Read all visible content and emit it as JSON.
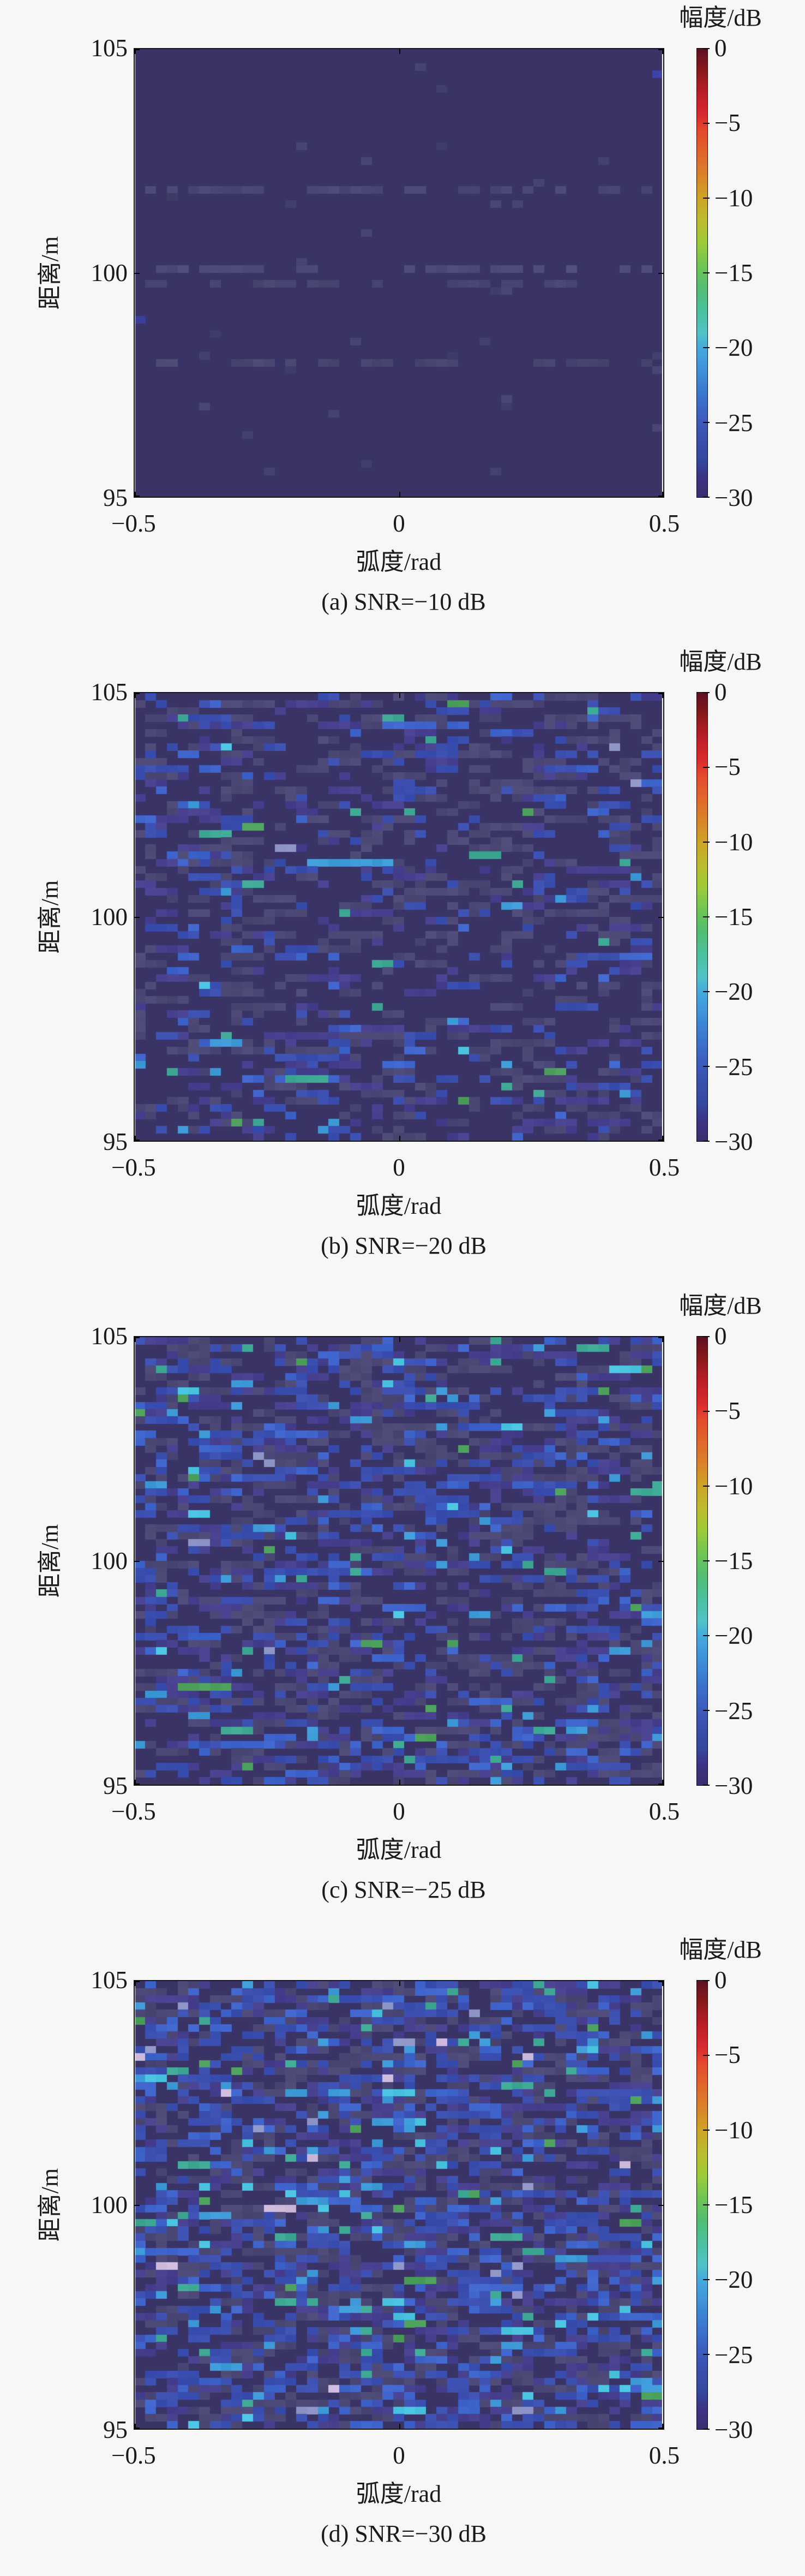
{
  "figure": {
    "background": "#f7f7f7",
    "axes_color": "#151515",
    "cell_grid": [
      49,
      62
    ]
  },
  "colormap_stops": [
    [
      0,
      "#5c0f22"
    ],
    [
      -1.5,
      "#8c191b"
    ],
    [
      -3,
      "#bb1e27"
    ],
    [
      -4.5,
      "#d92b2e"
    ],
    [
      -5.5,
      "#e4492d"
    ],
    [
      -7,
      "#e0662b"
    ],
    [
      -8.5,
      "#db8228"
    ],
    [
      -10,
      "#cda426"
    ],
    [
      -11.5,
      "#bcbb2e"
    ],
    [
      -13,
      "#9ecb37"
    ],
    [
      -14.5,
      "#6fc653"
    ],
    [
      -16,
      "#52bd71"
    ],
    [
      -17.5,
      "#49c19c"
    ],
    [
      -19,
      "#4fc3c7"
    ],
    [
      -20,
      "#45aade"
    ],
    [
      -21.5,
      "#3e91da"
    ],
    [
      -23,
      "#3b78d0"
    ],
    [
      -24.5,
      "#3c60c2"
    ],
    [
      -26,
      "#3950ae"
    ],
    [
      -27.5,
      "#34489e"
    ],
    [
      -28.7,
      "#3c3284"
    ],
    [
      -30,
      "#3a2d6e"
    ]
  ],
  "chart_data": [
    {
      "type": "heatmap",
      "caption": "(a) SNR=−10 dB",
      "snr_db": -10,
      "xlabel": "弧度/rad",
      "ylabel": "距离/m",
      "x_ticks": [
        "−0.5",
        "0",
        "0.5"
      ],
      "y_ticks": [
        "105",
        "100",
        "95"
      ],
      "x_range": [
        -0.5,
        0.5
      ],
      "y_range": [
        95,
        105
      ],
      "colorbar": {
        "label": "幅度/dB",
        "ticks": [
          "0",
          "−5",
          "−10",
          "−15",
          "−20",
          "−25",
          "−30"
        ],
        "range_db": [
          -30,
          0
        ]
      },
      "noise": {
        "seed": 101,
        "mode": "bands",
        "base_color": "#393366",
        "run_extend_prob": 0.5,
        "bands": [
          {
            "row_frac": 0.31,
            "fill_prob": 0.4,
            "color": "#4b4775"
          },
          {
            "row_frac": 0.495,
            "fill_prob": 0.52,
            "color": "#4e4a79"
          },
          {
            "row_frac": 0.52,
            "fill_prob": 0.28,
            "color": "#484472"
          },
          {
            "row_frac": 0.705,
            "fill_prob": 0.42,
            "color": "#4a4672"
          }
        ],
        "scatter": {
          "density": 0.012,
          "color": "#45416e"
        },
        "extras": [
          {
            "col": 0,
            "row": 37,
            "color": "#3b3f9b"
          },
          {
            "col": 48,
            "row": 3,
            "color": "#3d43a8"
          },
          {
            "col": 48,
            "row": 44,
            "color": "#4a4673"
          }
        ]
      }
    },
    {
      "type": "heatmap",
      "caption": "(b) SNR=−20 dB",
      "snr_db": -20,
      "xlabel": "弧度/rad",
      "ylabel": "距离/m",
      "x_ticks": [
        "−0.5",
        "0",
        "0.5"
      ],
      "y_ticks": [
        "105",
        "100",
        "95"
      ],
      "x_range": [
        -0.5,
        0.5
      ],
      "y_range": [
        95,
        105
      ],
      "colorbar": {
        "label": "幅度/dB",
        "ticks": [
          "0",
          "−5",
          "−10",
          "−15",
          "−20",
          "−25",
          "−30"
        ],
        "range_db": [
          -30,
          0
        ]
      },
      "noise": {
        "seed": 202,
        "mode": "random",
        "base_color": "#393366",
        "run_extend_prob": 0.45,
        "palette": [
          {
            "color": "#393366",
            "weight": 0.7,
            "db": -30
          },
          {
            "color": "#4c4876",
            "weight": 0.13,
            "db": -27
          },
          {
            "color": "#46408f",
            "weight": 0.065,
            "db": -26
          },
          {
            "color": "#3a4fb0",
            "weight": 0.075,
            "db": -24
          },
          {
            "color": "#3f64cb",
            "weight": 0.015,
            "db": -23
          },
          {
            "color": "#3e9bd8",
            "weight": 0.005,
            "db": -20
          },
          {
            "color": "#49c3e0",
            "weight": 0.002,
            "db": -19
          },
          {
            "color": "#3fa895",
            "weight": 0.004,
            "db": -18
          },
          {
            "color": "#4da05c",
            "weight": 0.002,
            "db": -16
          },
          {
            "color": "#8e96c8",
            "weight": 0.002,
            "db": -22
          }
        ]
      }
    },
    {
      "type": "heatmap",
      "caption": "(c) SNR=−25 dB",
      "snr_db": -25,
      "xlabel": "弧度/rad",
      "ylabel": "距离/m",
      "x_ticks": [
        "−0.5",
        "0",
        "0.5"
      ],
      "y_ticks": [
        "105",
        "100",
        "95"
      ],
      "x_range": [
        -0.5,
        0.5
      ],
      "y_range": [
        95,
        105
      ],
      "colorbar": {
        "label": "幅度/dB",
        "ticks": [
          "0",
          "−5",
          "−10",
          "−15",
          "−20",
          "−25",
          "−30"
        ],
        "range_db": [
          -30,
          0
        ]
      },
      "noise": {
        "seed": 303,
        "mode": "random",
        "base_color": "#393366",
        "run_extend_prob": 0.5,
        "palette": [
          {
            "color": "#393366",
            "weight": 0.585,
            "db": -30
          },
          {
            "color": "#4c4876",
            "weight": 0.155,
            "db": -27
          },
          {
            "color": "#46408f",
            "weight": 0.085,
            "db": -26
          },
          {
            "color": "#3a4fb0",
            "weight": 0.11,
            "db": -24
          },
          {
            "color": "#3f64cb",
            "weight": 0.035,
            "db": -23
          },
          {
            "color": "#3e9bd8",
            "weight": 0.012,
            "db": -20
          },
          {
            "color": "#49c3e0",
            "weight": 0.004,
            "db": -19
          },
          {
            "color": "#3fa895",
            "weight": 0.008,
            "db": -18
          },
          {
            "color": "#4da05c",
            "weight": 0.004,
            "db": -16
          },
          {
            "color": "#8e96c8",
            "weight": 0.002,
            "db": -22
          }
        ]
      }
    },
    {
      "type": "heatmap",
      "caption": "(d) SNR=−30 dB",
      "snr_db": -30,
      "xlabel": "弧度/rad",
      "ylabel": "距离/m",
      "x_ticks": [
        "−0.5",
        "0",
        "0.5"
      ],
      "y_ticks": [
        "105",
        "100",
        "95"
      ],
      "x_range": [
        -0.5,
        0.5
      ],
      "y_range": [
        95,
        105
      ],
      "colorbar": {
        "label": "幅度/dB",
        "ticks": [
          "0",
          "−5",
          "−10",
          "−15",
          "−20",
          "−25",
          "−30"
        ],
        "range_db": [
          -30,
          0
        ]
      },
      "noise": {
        "seed": 404,
        "mode": "random",
        "base_color": "#393366",
        "run_extend_prob": 0.5,
        "palette": [
          {
            "color": "#393366",
            "weight": 0.48,
            "db": -30
          },
          {
            "color": "#4c4876",
            "weight": 0.155,
            "db": -27
          },
          {
            "color": "#46408f",
            "weight": 0.105,
            "db": -26
          },
          {
            "color": "#3a4fb0",
            "weight": 0.15,
            "db": -24
          },
          {
            "color": "#3f64cb",
            "weight": 0.055,
            "db": -23
          },
          {
            "color": "#3e9bd8",
            "weight": 0.022,
            "db": -20
          },
          {
            "color": "#49c3e0",
            "weight": 0.008,
            "db": -19
          },
          {
            "color": "#3fa895",
            "weight": 0.012,
            "db": -18
          },
          {
            "color": "#4da05c",
            "weight": 0.006,
            "db": -16
          },
          {
            "color": "#8e96c8",
            "weight": 0.005,
            "db": -22
          },
          {
            "color": "#cbb8da",
            "weight": 0.002,
            "db": -14
          }
        ]
      }
    }
  ]
}
